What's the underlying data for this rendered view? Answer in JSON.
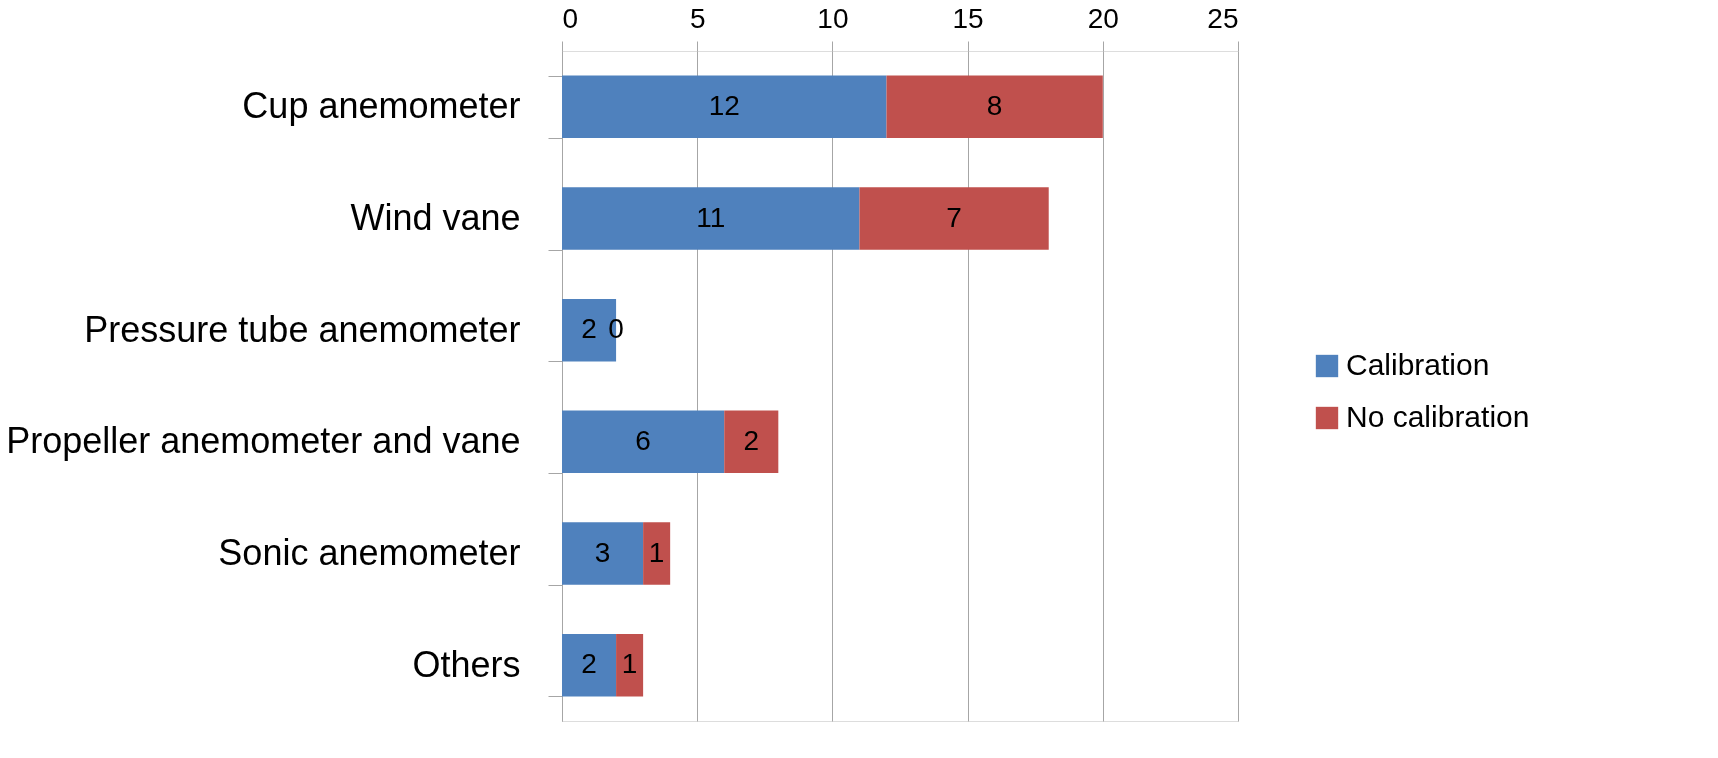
{
  "chart_data": {
    "type": "bar",
    "orientation": "horizontal",
    "stacked": true,
    "categories": [
      "Cup anemometer",
      "Wind vane",
      "Pressure tube anemometer",
      "Propeller anemometer and vane",
      "Sonic anemometer",
      "Others"
    ],
    "series": [
      {
        "name": "Calibration",
        "color": "#4f81bd",
        "values": [
          12,
          11,
          2,
          6,
          3,
          2
        ]
      },
      {
        "name": "No calibration",
        "color": "#c0504d",
        "values": [
          8,
          7,
          0,
          2,
          1,
          1
        ]
      }
    ],
    "xlim": [
      0,
      25
    ],
    "xticks": [
      0,
      5,
      10,
      15,
      20,
      25
    ],
    "grid": "x",
    "legend": "right",
    "data_labels": true
  }
}
